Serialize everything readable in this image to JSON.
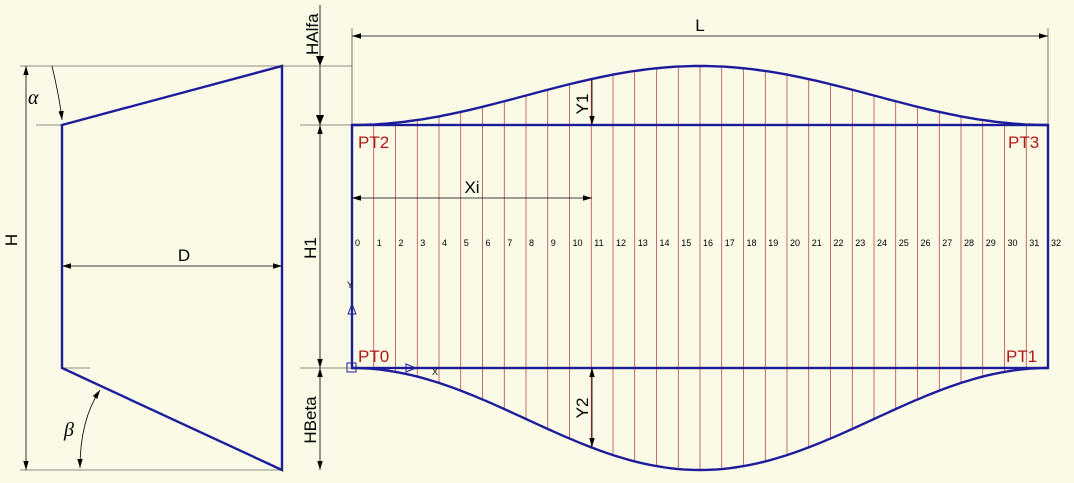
{
  "labels": {
    "L": "L",
    "H": "H",
    "D": "D",
    "H1": "H1",
    "HAlfa": "HAlfa",
    "HBeta": "HBeta",
    "Y1": "Y1",
    "Y2": "Y2",
    "Xi": "Xi",
    "alpha": "α",
    "beta": "β"
  },
  "points": {
    "PT0": "PT0",
    "PT1": "PT1",
    "PT2": "PT2",
    "PT3": "PT3"
  },
  "ucs": {
    "x": "X",
    "y": "Y"
  },
  "divisions": [
    "0",
    "1",
    "2",
    "3",
    "4",
    "5",
    "6",
    "7",
    "8",
    "9",
    "10",
    "11",
    "12",
    "13",
    "14",
    "15",
    "16",
    "17",
    "18",
    "19",
    "20",
    "21",
    "22",
    "23",
    "24",
    "25",
    "26",
    "27",
    "28",
    "29",
    "30",
    "31",
    "32"
  ],
  "colors": {
    "outline": "#1c1c9c",
    "hatch": "#b03030",
    "point_label": "#b01818",
    "background": "#fafae6"
  }
}
